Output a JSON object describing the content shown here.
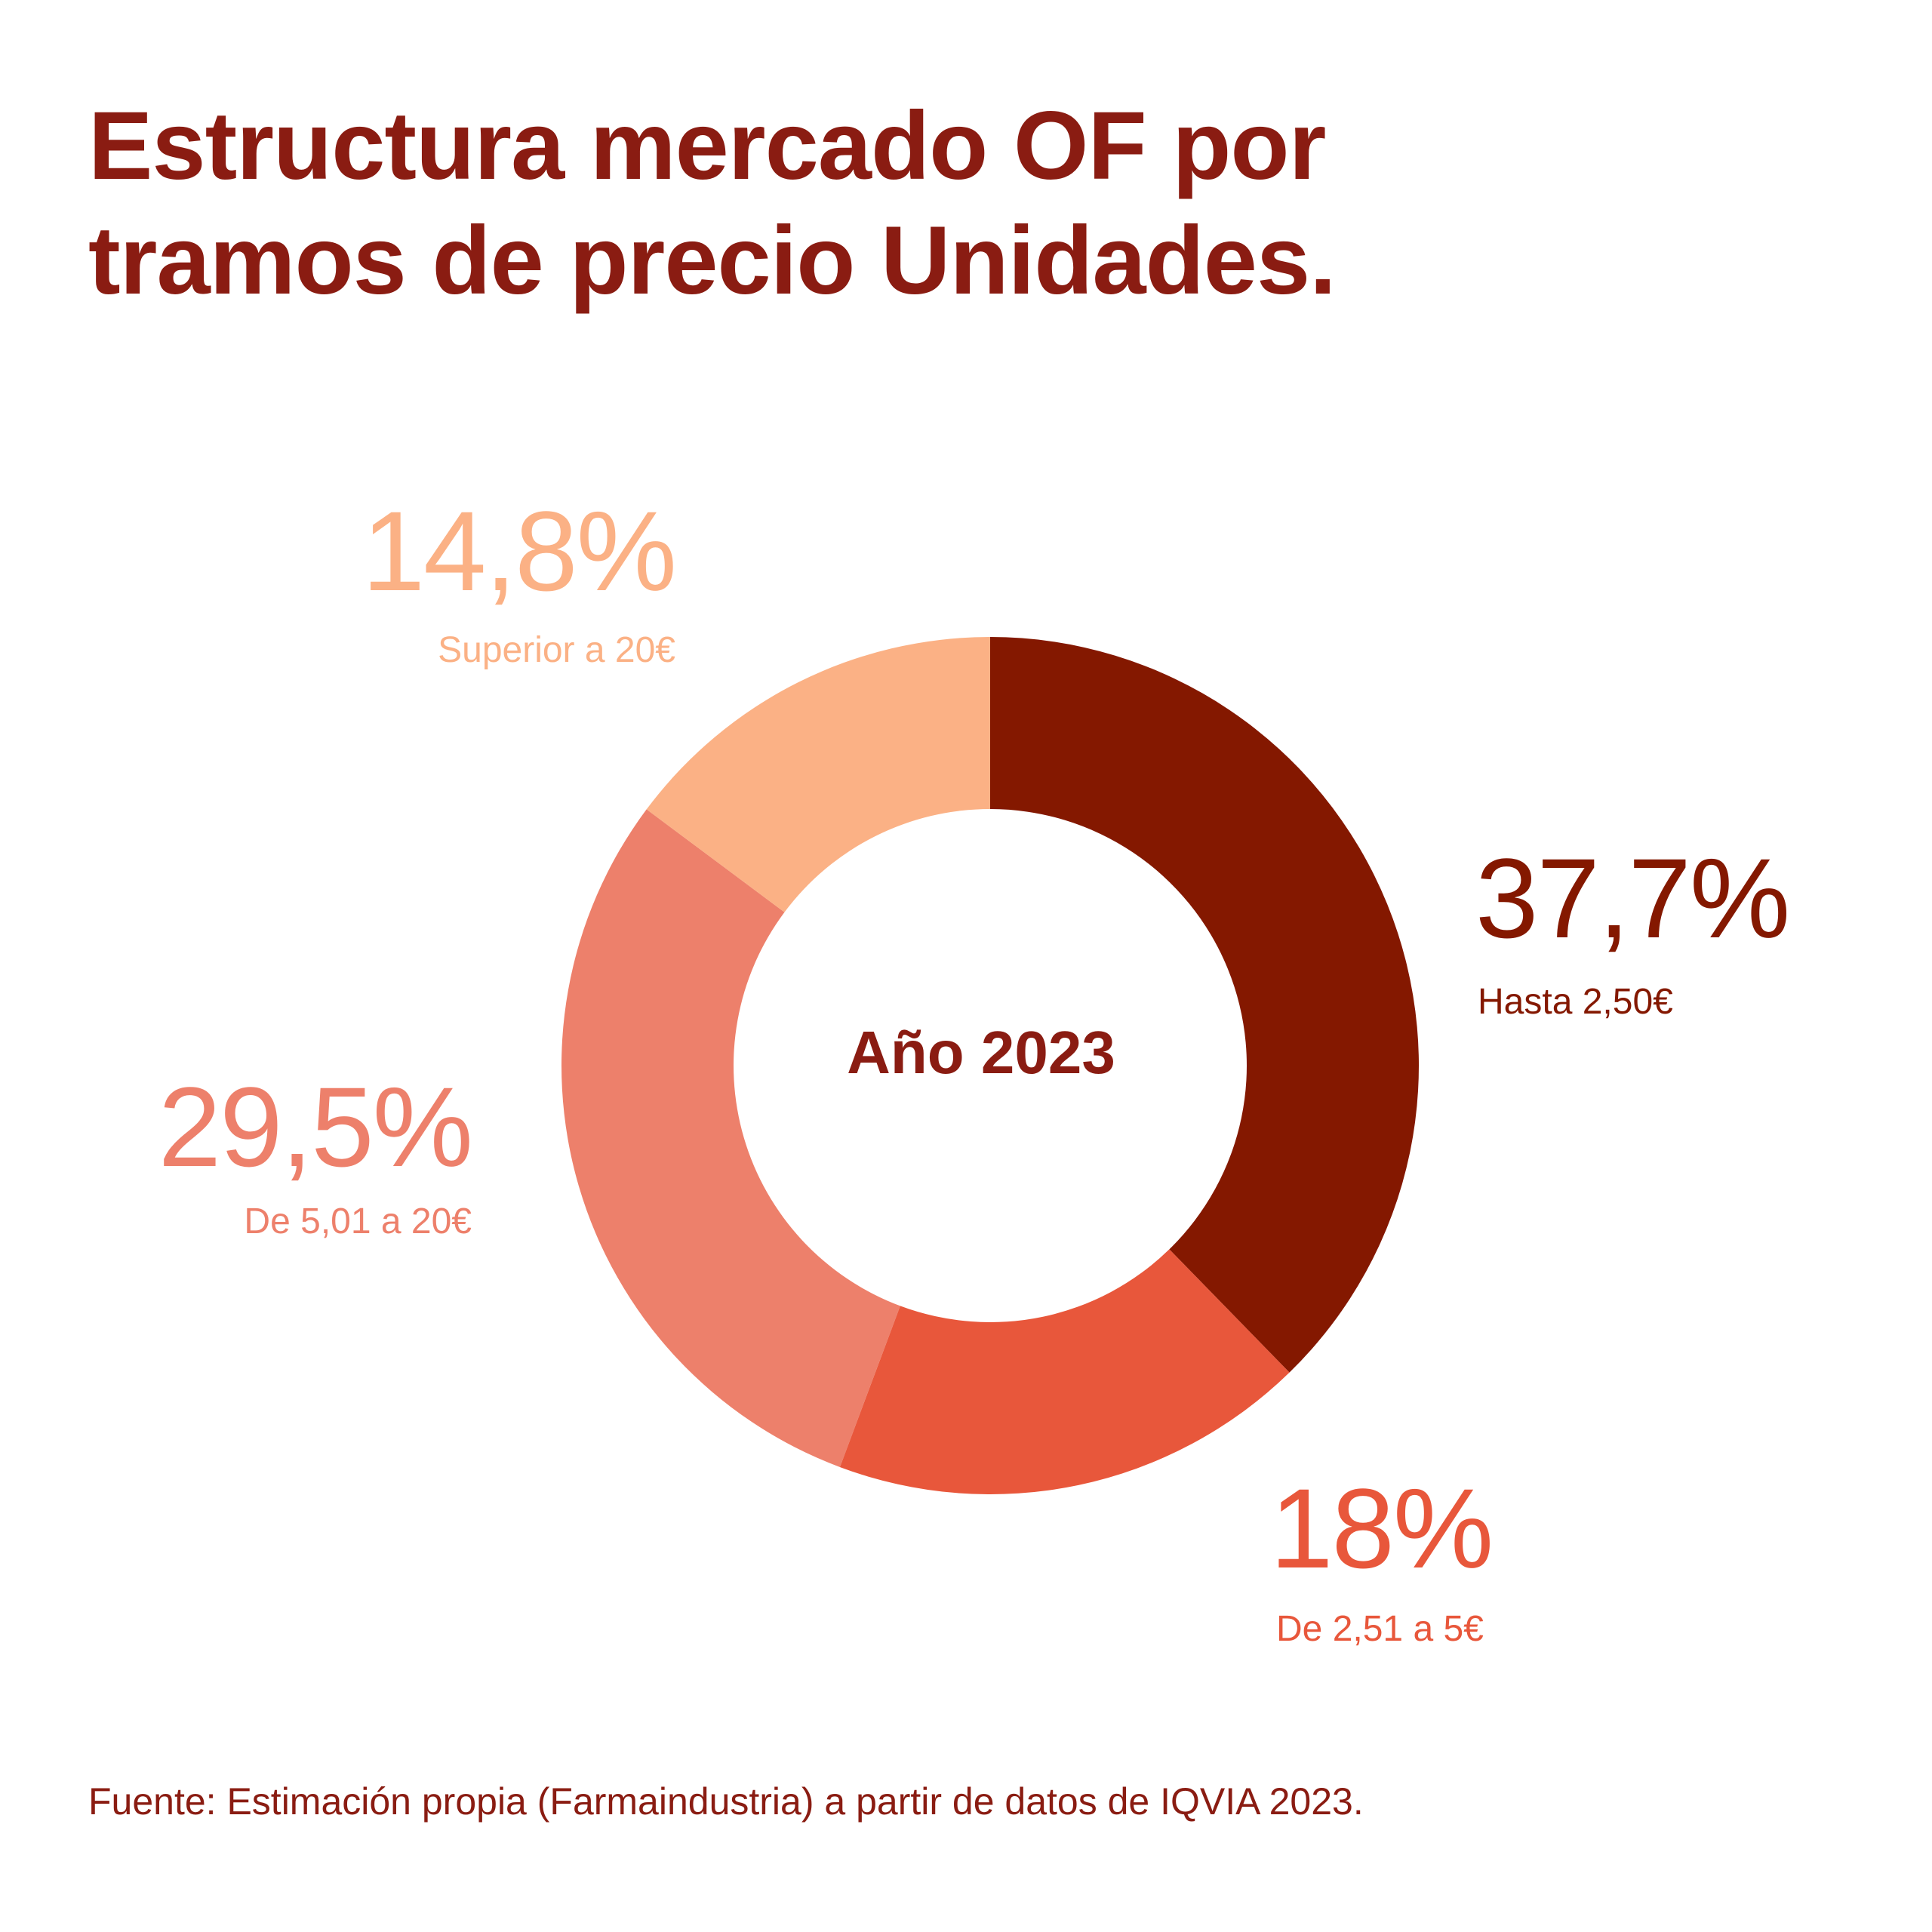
{
  "title": {
    "line1": "Estructura mercado OF por",
    "line2": "tramos de precio Unidades."
  },
  "center_label": "Año 2023",
  "source": "Fuente: Estimación propia (Farmaindustria) a partir de datos de IQVIA 2023.",
  "chart_data": {
    "type": "pie",
    "variant": "donut",
    "title": "Estructura mercado OF por tramos de precio Unidades.",
    "center_label": "Año 2023",
    "categories": [
      "Hasta 2,50€",
      "De 2,51 a 5€",
      "De 5,01 a 20€",
      "Superior a 20€"
    ],
    "values": [
      37.7,
      18,
      29.5,
      14.8
    ],
    "value_labels": [
      "37,7%",
      "18%",
      "29,5%",
      "14,8%"
    ],
    "colors": [
      "#841800",
      "#e8573b",
      "#ed806b",
      "#fbb185"
    ],
    "legend": "none"
  },
  "labels": [
    {
      "pct": "37,7%",
      "cat": "Hasta 2,50€",
      "color": "#841800"
    },
    {
      "pct": "18%",
      "cat": "De 2,51 a 5€",
      "color": "#e8573b"
    },
    {
      "pct": "29,5%",
      "cat": "De 5,01 a 20€",
      "color": "#ed806b"
    },
    {
      "pct": "14,8%",
      "cat": "Superior a 20€",
      "color": "#fbb185"
    }
  ]
}
